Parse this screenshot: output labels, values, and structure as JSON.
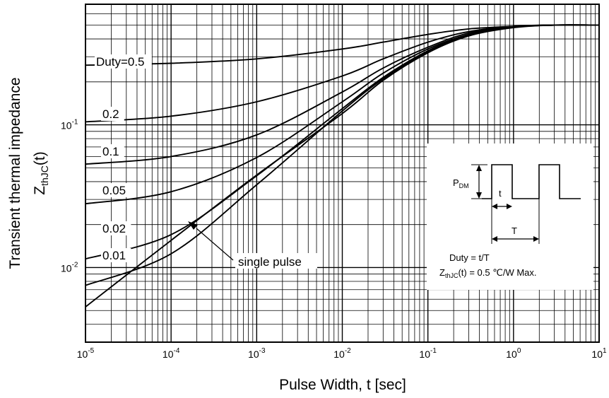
{
  "chart_data": {
    "type": "line",
    "x_scale": "log",
    "y_scale": "log",
    "xlim": [
      1e-05,
      10
    ],
    "ylim": [
      0.003,
      0.7
    ],
    "grid": true,
    "xlabel": "Pulse Width, t [sec]",
    "ylabel_main": "Transient thermal impedance",
    "ylabel_sym": "Z",
    "ylabel_sub": "thJC",
    "ylabel_tail": "(t)",
    "x_ticks": [
      {
        "value": 1e-05,
        "base": "10",
        "exp": "-5"
      },
      {
        "value": 0.0001,
        "base": "10",
        "exp": "-4"
      },
      {
        "value": 0.001,
        "base": "10",
        "exp": "-3"
      },
      {
        "value": 0.01,
        "base": "10",
        "exp": "-2"
      },
      {
        "value": 0.1,
        "base": "10",
        "exp": "-1"
      },
      {
        "value": 1,
        "base": "10",
        "exp": "0"
      },
      {
        "value": 10,
        "base": "10",
        "exp": "1"
      }
    ],
    "y_ticks": [
      {
        "value": 0.01,
        "base": "10",
        "exp": "-2"
      },
      {
        "value": 0.1,
        "base": "10",
        "exp": "-1"
      }
    ],
    "series": [
      {
        "name": "Duty=0.5",
        "x": [
          1e-05,
          0.0001,
          0.001,
          0.01,
          0.03,
          0.1,
          0.3,
          1,
          3,
          10
        ],
        "y": [
          0.262,
          0.27,
          0.29,
          0.34,
          0.38,
          0.43,
          0.47,
          0.49,
          0.5,
          0.5
        ]
      },
      {
        "name": "0.2",
        "x": [
          1e-05,
          0.0001,
          0.001,
          0.01,
          0.03,
          0.1,
          0.3,
          1,
          3,
          10
        ],
        "y": [
          0.105,
          0.115,
          0.145,
          0.22,
          0.29,
          0.38,
          0.45,
          0.49,
          0.5,
          0.5
        ]
      },
      {
        "name": "0.1",
        "x": [
          1e-05,
          0.0001,
          0.001,
          0.01,
          0.03,
          0.1,
          0.3,
          1,
          3,
          10
        ],
        "y": [
          0.053,
          0.06,
          0.085,
          0.17,
          0.25,
          0.35,
          0.44,
          0.49,
          0.5,
          0.5
        ]
      },
      {
        "name": "0.05",
        "x": [
          1e-05,
          0.0001,
          0.001,
          0.01,
          0.03,
          0.1,
          0.3,
          1,
          3,
          10
        ],
        "y": [
          0.028,
          0.034,
          0.059,
          0.145,
          0.23,
          0.34,
          0.43,
          0.485,
          0.5,
          0.5
        ]
      },
      {
        "name": "0.02",
        "x": [
          1e-05,
          0.0001,
          0.001,
          0.01,
          0.03,
          0.1,
          0.3,
          1,
          3,
          10
        ],
        "y": [
          0.0115,
          0.017,
          0.044,
          0.13,
          0.215,
          0.33,
          0.43,
          0.485,
          0.5,
          0.5
        ]
      },
      {
        "name": "0.01",
        "x": [
          1e-05,
          0.0001,
          0.001,
          0.01,
          0.03,
          0.1,
          0.3,
          1,
          3,
          10
        ],
        "y": [
          0.0075,
          0.0125,
          0.038,
          0.125,
          0.21,
          0.325,
          0.425,
          0.485,
          0.5,
          0.5
        ]
      },
      {
        "name": "single pulse",
        "x": [
          1e-05,
          0.0001,
          0.001,
          0.01,
          0.03,
          0.1,
          0.3,
          1,
          3,
          10
        ],
        "y": [
          0.0053,
          0.0155,
          0.0445,
          0.12,
          0.205,
          0.32,
          0.42,
          0.48,
          0.5,
          0.5
        ]
      }
    ],
    "series_labels": [
      {
        "text": "Duty=0.5",
        "series": "Duty=0.5"
      },
      {
        "text": "0.2",
        "series": "0.2"
      },
      {
        "text": "0.1",
        "series": "0.1"
      },
      {
        "text": "0.05",
        "series": "0.05"
      },
      {
        "text": "0.02",
        "series": "0.02"
      },
      {
        "text": "0.01",
        "series": "0.01"
      }
    ],
    "annotation": {
      "text": "single pulse",
      "points_to": "single pulse"
    },
    "inset": {
      "pdm_sym": "P",
      "pdm_sub": "DM",
      "t_label": "t",
      "T_label": "T",
      "duty_text": "Duty = t/T",
      "z_sym": "Z",
      "z_sub": "thJC",
      "z_tail": "(t) = 0.5 ℃/W Max."
    }
  }
}
